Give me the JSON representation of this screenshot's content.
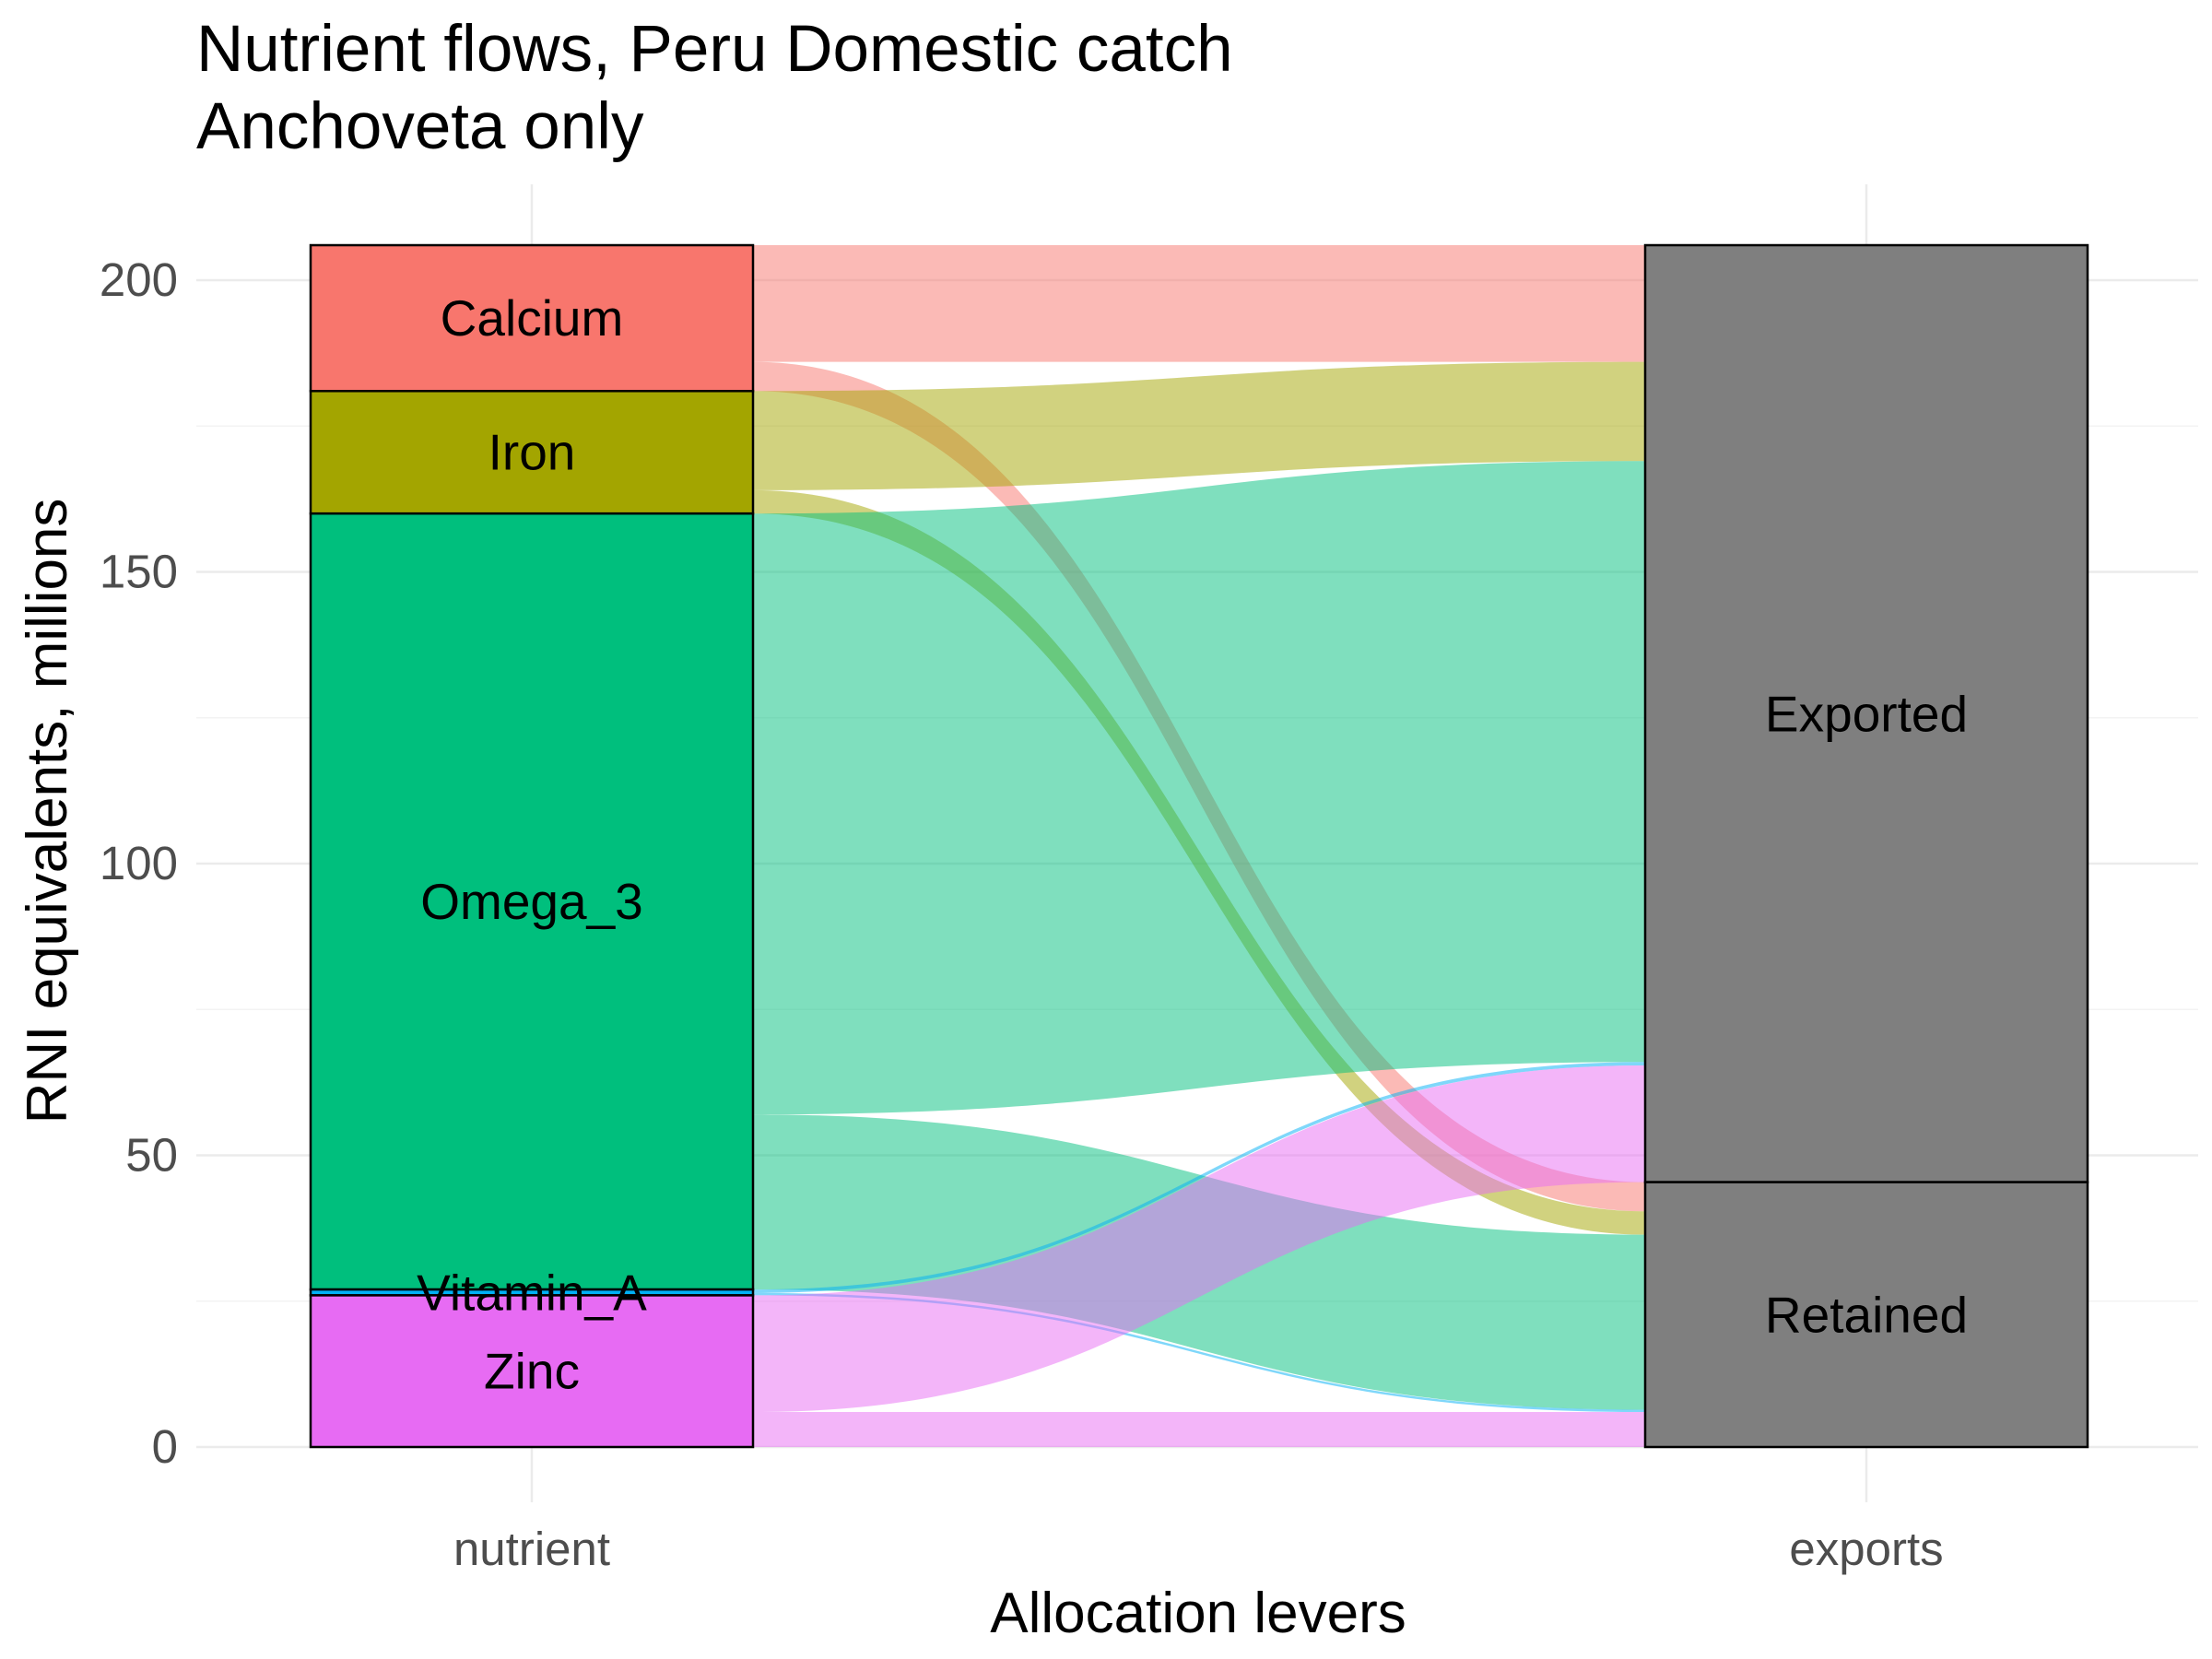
{
  "chart_data": {
    "type": "alluvial",
    "title": "Nutrient flows, Peru Domestic catch",
    "subtitle": "Anchoveta only",
    "xlabel": "Allocation levers",
    "ylabel": "RNI equivalents, millions",
    "ylim": [
      0,
      206
    ],
    "y_ticks": [
      0,
      50,
      100,
      150,
      200
    ],
    "axes": [
      "nutrient",
      "exports"
    ],
    "grid": true,
    "nutrients": [
      {
        "name": "Calcium",
        "color": "#F8766D",
        "retained": 5,
        "exported": 20
      },
      {
        "name": "Iron",
        "color": "#A3A500",
        "retained": 4,
        "exported": 17
      },
      {
        "name": "Omega_3",
        "color": "#00BF7D",
        "retained": 30,
        "exported": 103
      },
      {
        "name": "Vitamin_A",
        "color": "#00B0F6",
        "retained": 0.4,
        "exported": 0.6
      },
      {
        "name": "Zinc",
        "color": "#E76BF3",
        "retained": 6,
        "exported": 20
      }
    ],
    "export_strata": [
      {
        "name": "Exported",
        "color": "#7F7F7F"
      },
      {
        "name": "Retained",
        "color": "#7F7F7F"
      }
    ]
  }
}
